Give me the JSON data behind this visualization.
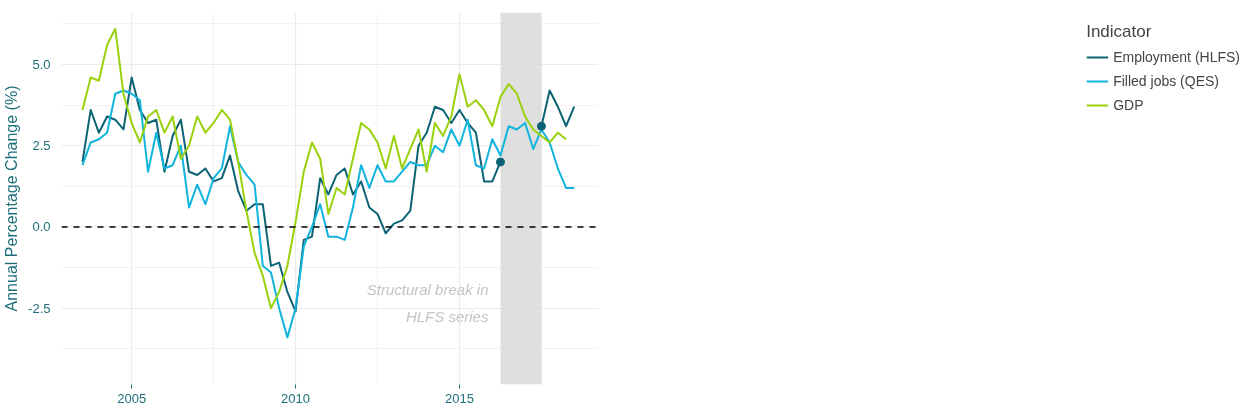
{
  "chart_data": {
    "type": "line",
    "ylabel": "Annual Percentage Change (%)",
    "legend_title": "Indicator",
    "legend": "right",
    "grid": true,
    "line_style": "solid",
    "x": [
      2003.5,
      2003.75,
      2004,
      2004.25,
      2004.5,
      2004.75,
      2005,
      2005.25,
      2005.5,
      2005.75,
      2006,
      2006.25,
      2006.5,
      2006.75,
      2007,
      2007.25,
      2007.5,
      2007.75,
      2008,
      2008.25,
      2008.5,
      2008.75,
      2009,
      2009.25,
      2009.5,
      2009.75,
      2010,
      2010.25,
      2010.5,
      2010.75,
      2011,
      2011.25,
      2011.5,
      2011.75,
      2012,
      2012.25,
      2012.5,
      2012.75,
      2013,
      2013.25,
      2013.5,
      2013.75,
      2014,
      2014.25,
      2014.5,
      2014.75,
      2015,
      2015.25,
      2015.5,
      2015.75,
      2016,
      2016.25,
      2016.5,
      2016.75,
      2017,
      2017.25,
      2017.5,
      2017.75,
      2018,
      2018.25,
      2018.5
    ],
    "series": [
      {
        "name": "Employment (HLFS)",
        "color": "#0b6374",
        "values": [
          2.0,
          3.6,
          2.9,
          3.4,
          3.3,
          3.0,
          4.6,
          3.6,
          3.2,
          3.3,
          1.7,
          2.8,
          3.3,
          1.7,
          1.6,
          1.8,
          1.4,
          1.5,
          2.2,
          1.1,
          0.5,
          0.7,
          0.7,
          -1.2,
          -1.1,
          -2.0,
          -2.6,
          -0.4,
          -0.3,
          1.5,
          1.0,
          1.6,
          1.8,
          1.0,
          1.4,
          0.6,
          0.4,
          -0.2,
          0.1,
          0.2,
          0.5,
          2.5,
          2.9,
          3.7,
          3.6,
          3.2,
          3.6,
          3.2,
          2.9,
          1.4,
          1.4,
          2.0,
          null,
          null,
          null,
          null,
          3.1,
          4.2,
          3.7,
          3.1,
          3.7
        ]
      },
      {
        "name": "Filled jobs (QES)",
        "color": "#10b4dc",
        "values": [
          1.9,
          2.6,
          2.7,
          2.9,
          4.1,
          4.2,
          4.1,
          3.9,
          1.7,
          2.9,
          1.8,
          1.9,
          2.5,
          0.6,
          1.3,
          0.7,
          1.5,
          1.8,
          3.1,
          2.0,
          1.6,
          1.3,
          -1.2,
          -1.4,
          -2.5,
          -3.4,
          -2.5,
          -0.6,
          0.0,
          0.7,
          -0.3,
          -0.3,
          -0.4,
          0.6,
          1.9,
          1.2,
          1.9,
          1.4,
          1.4,
          1.7,
          2.0,
          1.9,
          1.9,
          2.5,
          2.3,
          3.0,
          2.5,
          3.3,
          1.9,
          1.8,
          2.7,
          2.2,
          3.1,
          3.0,
          3.2,
          2.4,
          3.0,
          2.6,
          1.8,
          1.2,
          1.2
        ]
      },
      {
        "name": "GDP",
        "color": "#99d10c",
        "values": [
          3.6,
          4.6,
          4.5,
          5.6,
          6.1,
          4.1,
          3.2,
          2.6,
          3.4,
          3.6,
          2.9,
          3.4,
          2.1,
          2.5,
          3.4,
          2.9,
          3.2,
          3.6,
          3.3,
          2.0,
          0.5,
          -0.8,
          -1.5,
          -2.5,
          -2.0,
          -1.2,
          0.15,
          1.7,
          2.6,
          2.1,
          0.4,
          1.2,
          1.0,
          2.1,
          3.2,
          3.0,
          2.6,
          1.8,
          2.8,
          1.8,
          2.4,
          3.0,
          1.7,
          3.2,
          2.8,
          3.4,
          4.7,
          3.7,
          3.9,
          3.6,
          3.1,
          4.0,
          4.4,
          4.1,
          3.4,
          3.0,
          2.8,
          2.6,
          2.9,
          2.7,
          null
        ]
      },
      {
        "type": "scatter",
        "marker": "circle",
        "color": "#0b6374",
        "x": [
          2016.25,
          2017.5
        ],
        "values": [
          2.0,
          3.1
        ]
      }
    ],
    "xlim": [
      2002.86,
      2019.24
    ],
    "ylim": [
      -4.85,
      6.6
    ],
    "xticks": [
      2005,
      2010,
      2015
    ],
    "yticks": [
      {
        "value": -2.5,
        "label": "-2.5"
      },
      {
        "value": 0,
        "label": "0.0"
      },
      {
        "value": 2.5,
        "label": "2.5"
      },
      {
        "value": 5,
        "label": "5.0"
      }
    ],
    "ref_lines": [
      {
        "axis": "y",
        "value": 0,
        "color": "#000000",
        "line_style": "dashed"
      }
    ],
    "bands": [
      {
        "axis": "x",
        "from": 2016.25,
        "to": 2017.5,
        "color": "#d9d9d9",
        "label": "Structural break in\nHLFS series"
      }
    ]
  }
}
